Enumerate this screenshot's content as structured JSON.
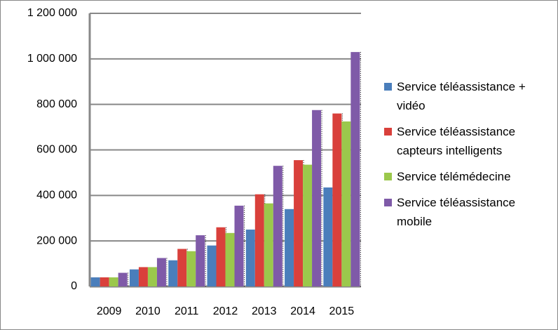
{
  "chart_data": {
    "type": "bar",
    "categories": [
      "2009",
      "2010",
      "2011",
      "2012",
      "2013",
      "2014",
      "2015"
    ],
    "series": [
      {
        "name": "Service téléassistance + vidéo",
        "color": "#4a7ebb",
        "values": [
          40000,
          75000,
          115000,
          180000,
          250000,
          340000,
          435000
        ]
      },
      {
        "name": "Service téléassistance capteurs intelligents",
        "color": "#d9403b",
        "values": [
          40000,
          85000,
          165000,
          260000,
          405000,
          555000,
          760000
        ]
      },
      {
        "name": "Service télémédecine",
        "color": "#9bc84c",
        "values": [
          40000,
          85000,
          155000,
          235000,
          365000,
          535000,
          725000
        ]
      },
      {
        "name": "Service téléassistance mobile",
        "color": "#7f5aa8",
        "values": [
          60000,
          125000,
          225000,
          355000,
          530000,
          775000,
          1030000
        ]
      }
    ],
    "ylim": [
      0,
      1200000
    ],
    "yticks": [
      0,
      {
        "value": 200000,
        "label": "200 000"
      },
      {
        "value": 400000,
        "label": "400 000"
      },
      {
        "value": 600000,
        "label": "600 000"
      },
      {
        "value": 800000,
        "label": "800 000"
      },
      {
        "value": 1000000,
        "label": "1 000 000"
      },
      {
        "value": 1200000,
        "label": "1 200 000"
      }
    ],
    "grid": true,
    "legend": "right"
  }
}
